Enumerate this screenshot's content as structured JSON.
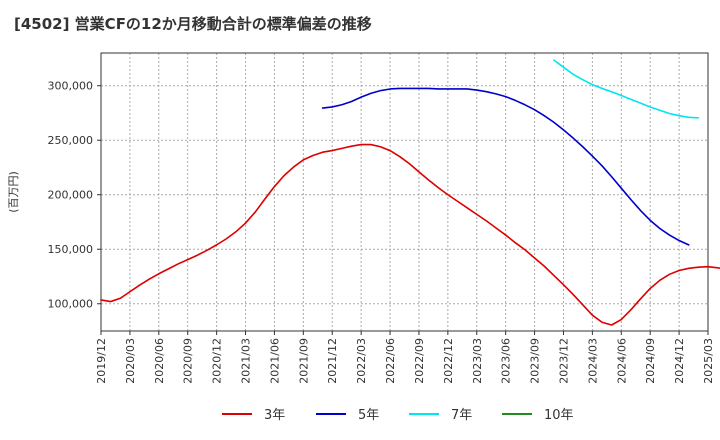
{
  "chart_data": {
    "type": "line",
    "title": "[4502]  営業CFの12か月移動合計の標準偏差の推移",
    "ylabel": "(百万円)",
    "xlabel": "",
    "ylim": [
      75000,
      330000
    ],
    "yticks": [
      100000,
      150000,
      200000,
      250000,
      300000
    ],
    "ytick_labels": [
      "100,000",
      "150,000",
      "200,000",
      "250,000",
      "300,000"
    ],
    "x_start": "2019/12",
    "xticks": [
      "2019/12",
      "2020/03",
      "2020/06",
      "2020/09",
      "2020/12",
      "2021/03",
      "2021/06",
      "2021/09",
      "2021/12",
      "2022/03",
      "2022/06",
      "2022/09",
      "2022/12",
      "2023/03",
      "2023/06",
      "2023/09",
      "2023/12",
      "2024/03",
      "2024/06",
      "2024/09",
      "2024/12",
      "2025/03"
    ],
    "grid": true,
    "legend_position": "bottom",
    "series": [
      {
        "name": "3年",
        "color": "#dd0000",
        "start": "2019/12",
        "values": [
          103500,
          102000,
          105000,
          111000,
          117000,
          122500,
          127500,
          132000,
          136500,
          140500,
          144500,
          149000,
          154000,
          159500,
          166000,
          174000,
          184000,
          196000,
          207500,
          217500,
          225500,
          232000,
          236000,
          239000,
          240500,
          242500,
          244500,
          246000,
          246000,
          244000,
          240500,
          235000,
          228500,
          221000,
          213500,
          206500,
          200000,
          194000,
          188000,
          182000,
          176000,
          169500,
          163000,
          156000,
          149500,
          142000,
          134500,
          126000,
          117500,
          108500,
          99000,
          89500,
          83000,
          80500,
          85500,
          94500,
          104500,
          114000,
          121500,
          127000,
          130500,
          132500,
          133500,
          134000,
          133000,
          131500,
          130000
        ]
      },
      {
        "name": "5年",
        "color": "#0000cc",
        "start": "2021/11",
        "values": [
          279500,
          280500,
          282500,
          285500,
          289500,
          293000,
          295500,
          297000,
          297500,
          297500,
          297500,
          297500,
          297000,
          297000,
          297000,
          297000,
          296000,
          294500,
          292500,
          290000,
          286500,
          282500,
          278000,
          272500,
          266500,
          259500,
          252000,
          244000,
          235500,
          226500,
          216500,
          206000,
          195500,
          185500,
          176500,
          169000,
          163000,
          158000,
          154000
        ]
      },
      {
        "name": "7年",
        "color": "#00e5ee",
        "start": "2023/11",
        "values": [
          323500,
          317000,
          310500,
          305500,
          301000,
          297500,
          294500,
          291000,
          287500,
          284000,
          280500,
          277500,
          274500,
          272500,
          271000,
          270500
        ]
      },
      {
        "name": "10年",
        "color": "#228b22",
        "start": "2024/12",
        "values": []
      }
    ]
  }
}
